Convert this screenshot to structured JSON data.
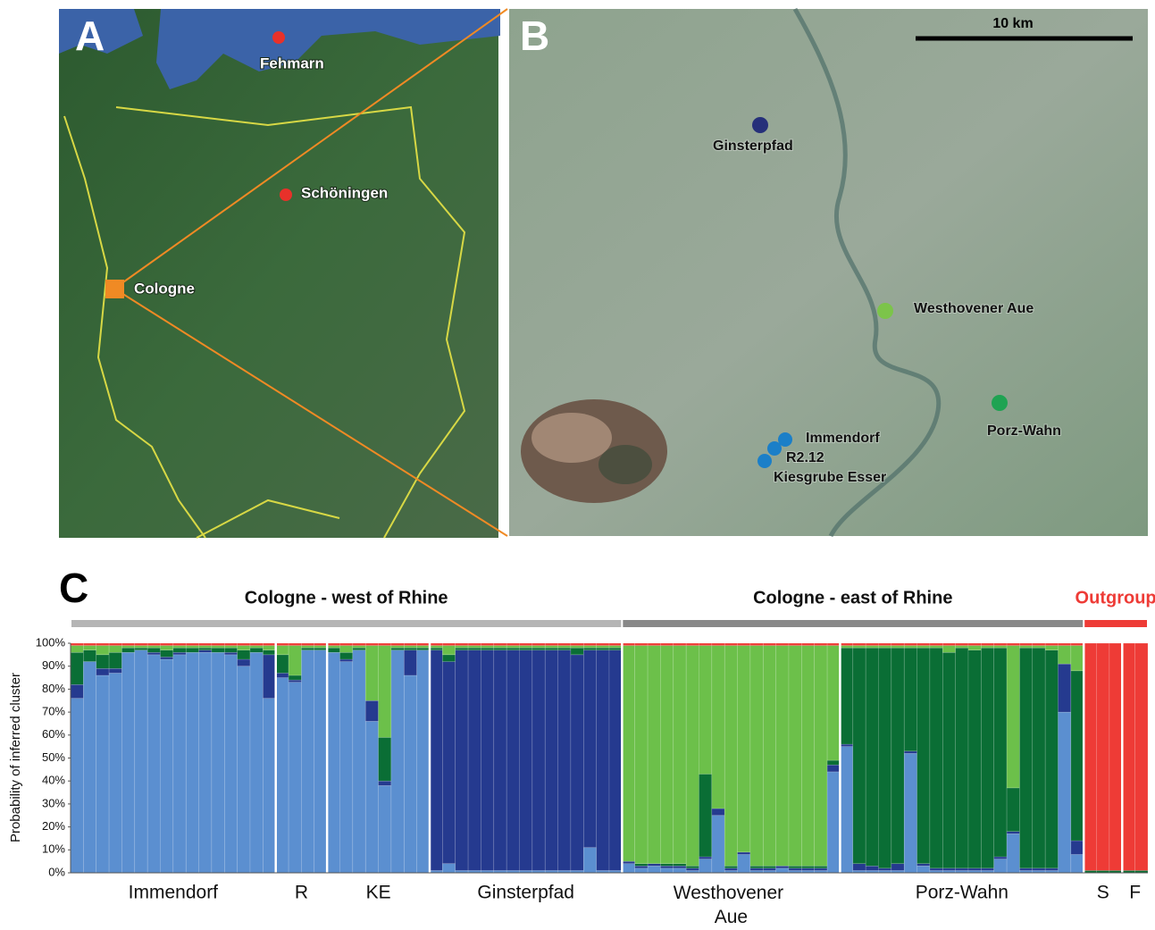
{
  "panel_a": {
    "letter": "A",
    "sites": [
      {
        "label": "Fehmarn",
        "color": "#e8312a"
      },
      {
        "label": "Schöningen",
        "color": "#e8312a"
      },
      {
        "label": "Cologne",
        "color": "#f08a24"
      }
    ]
  },
  "panel_b": {
    "letter": "B",
    "scale_label": "10 km",
    "sites": [
      {
        "label": "Ginsterpfad",
        "color": "#26307a"
      },
      {
        "label": "Westhovener Aue",
        "color": "#7cc44a"
      },
      {
        "label": "Porz-Wahn",
        "color": "#1fa352"
      },
      {
        "label": "Immendorf",
        "color": "#1b7fc8"
      },
      {
        "label": "R2.12",
        "color": "#1b7fc8"
      },
      {
        "label": "Kiesgrube Esser",
        "color": "#1b7fc8"
      }
    ]
  },
  "chart_data": {
    "type": "stacked_bar",
    "panel_letter": "C",
    "ylabel": "Probability of inferred cluster",
    "ylim": [
      0,
      100
    ],
    "yticks": [
      {
        "value": 0,
        "label": "0%"
      },
      {
        "value": 10,
        "label": "10%"
      },
      {
        "value": 20,
        "label": "20%"
      },
      {
        "value": 30,
        "label": "30%"
      },
      {
        "value": 40,
        "label": "40%"
      },
      {
        "value": 50,
        "label": "50%"
      },
      {
        "value": 60,
        "label": "60%"
      },
      {
        "value": 70,
        "label": "70%"
      },
      {
        "value": 80,
        "label": "80%"
      },
      {
        "value": 90,
        "label": "90%"
      },
      {
        "value": 100,
        "label": "100%"
      }
    ],
    "regions": [
      {
        "label": "Cologne - west of Rhine",
        "color": "#b5b5b5",
        "label_color": "#111111",
        "populations": [
          "Immendorf",
          "R",
          "KE",
          "Ginsterpfad"
        ]
      },
      {
        "label": "Cologne - east of Rhine",
        "color": "#888888",
        "label_color": "#111111",
        "populations": [
          "Westhovener Aue",
          "Porz-Wahn"
        ]
      },
      {
        "label": "Outgroup",
        "color": "#ee3b36",
        "label_color": "#ee3b36",
        "populations": [
          "S",
          "F"
        ]
      }
    ],
    "categories": [
      "Immendorf",
      "Immendorf",
      "Immendorf",
      "Immendorf",
      "Immendorf",
      "Immendorf",
      "Immendorf",
      "Immendorf",
      "Immendorf",
      "Immendorf",
      "Immendorf",
      "Immendorf",
      "Immendorf",
      "Immendorf",
      "Immendorf",
      "Immendorf",
      "R",
      "R",
      "R",
      "R",
      "KE",
      "KE",
      "KE",
      "KE",
      "KE",
      "KE",
      "KE",
      "KE",
      "Ginsterpfad",
      "Ginsterpfad",
      "Ginsterpfad",
      "Ginsterpfad",
      "Ginsterpfad",
      "Ginsterpfad",
      "Ginsterpfad",
      "Ginsterpfad",
      "Ginsterpfad",
      "Ginsterpfad",
      "Ginsterpfad",
      "Ginsterpfad",
      "Ginsterpfad",
      "Ginsterpfad",
      "Ginsterpfad",
      "Westhovener Aue",
      "Westhovener Aue",
      "Westhovener Aue",
      "Westhovener Aue",
      "Westhovener Aue",
      "Westhovener Aue",
      "Westhovener Aue",
      "Westhovener Aue",
      "Westhovener Aue",
      "Westhovener Aue",
      "Westhovener Aue",
      "Westhovener Aue",
      "Westhovener Aue",
      "Westhovener Aue",
      "Westhovener Aue",
      "Westhovener Aue",
      "Westhovener Aue",
      "Porz-Wahn",
      "Porz-Wahn",
      "Porz-Wahn",
      "Porz-Wahn",
      "Porz-Wahn",
      "Porz-Wahn",
      "Porz-Wahn",
      "Porz-Wahn",
      "Porz-Wahn",
      "Porz-Wahn",
      "Porz-Wahn",
      "Porz-Wahn",
      "Porz-Wahn",
      "Porz-Wahn",
      "Porz-Wahn",
      "Porz-Wahn",
      "Porz-Wahn",
      "Porz-Wahn",
      "Porz-Wahn",
      "S",
      "S",
      "S",
      "F",
      "F"
    ],
    "series": [
      {
        "color": "#5b8fd0",
        "values": [
          76,
          92,
          86,
          87,
          96,
          97,
          95,
          93,
          95,
          96,
          96,
          96,
          95,
          90,
          96,
          76,
          85,
          83,
          97,
          97,
          96,
          92,
          97,
          66,
          38,
          97,
          86,
          97,
          1,
          4,
          1,
          1,
          1,
          1,
          1,
          1,
          1,
          1,
          1,
          1,
          11,
          1,
          1,
          4,
          2,
          3,
          2,
          2,
          1,
          6,
          25,
          1,
          8,
          1,
          1,
          2,
          1,
          1,
          1,
          44,
          55,
          1,
          1,
          1,
          1,
          52,
          3,
          1,
          1,
          1,
          1,
          1,
          6,
          17,
          1,
          1,
          1,
          70,
          8,
          0,
          0,
          0,
          0,
          0
        ]
      },
      {
        "color": "#253a8f",
        "values": [
          6,
          0,
          3,
          2,
          0,
          0,
          1,
          1,
          1,
          0,
          1,
          0,
          1,
          3,
          0,
          19,
          2,
          1,
          0,
          0,
          0,
          1,
          0,
          9,
          2,
          0,
          11,
          0,
          96,
          88,
          96,
          96,
          96,
          96,
          96,
          96,
          96,
          96,
          96,
          94,
          86,
          96,
          96,
          1,
          1,
          1,
          1,
          1,
          1,
          1,
          3,
          1,
          1,
          1,
          1,
          1,
          1,
          1,
          1,
          3,
          1,
          3,
          2,
          1,
          3,
          1,
          1,
          1,
          1,
          1,
          1,
          1,
          1,
          1,
          1,
          1,
          1,
          21,
          6,
          0,
          0,
          0,
          0,
          0
        ]
      },
      {
        "color": "#0a6e35",
        "values": [
          14,
          5,
          6,
          7,
          2,
          1,
          2,
          3,
          2,
          2,
          1,
          2,
          2,
          4,
          2,
          2,
          8,
          2,
          1,
          1,
          2,
          3,
          1,
          0,
          19,
          1,
          1,
          1,
          1,
          3,
          1,
          1,
          1,
          1,
          1,
          1,
          1,
          1,
          1,
          3,
          1,
          1,
          1,
          0,
          1,
          0,
          1,
          1,
          1,
          36,
          0,
          1,
          0,
          1,
          1,
          0,
          1,
          1,
          1,
          2,
          42,
          94,
          95,
          96,
          94,
          45,
          94,
          96,
          94,
          96,
          95,
          96,
          91,
          19,
          96,
          96,
          95,
          0,
          74,
          1,
          1,
          1,
          1,
          1
        ]
      },
      {
        "color": "#6cc04a",
        "values": [
          3,
          2,
          4,
          3,
          1,
          1,
          1,
          2,
          1,
          1,
          1,
          1,
          1,
          2,
          1,
          2,
          4,
          13,
          1,
          1,
          1,
          3,
          1,
          24,
          40,
          1,
          1,
          1,
          1,
          4,
          1,
          1,
          1,
          1,
          1,
          1,
          1,
          1,
          1,
          1,
          1,
          1,
          1,
          94,
          95,
          95,
          95,
          95,
          96,
          56,
          71,
          96,
          90,
          96,
          96,
          96,
          96,
          96,
          96,
          50,
          1,
          1,
          1,
          1,
          1,
          1,
          1,
          1,
          3,
          1,
          2,
          1,
          1,
          62,
          1,
          1,
          2,
          8,
          11,
          0,
          0,
          0,
          0,
          0
        ]
      },
      {
        "color": "#ee3b36",
        "values": [
          1,
          1,
          1,
          1,
          1,
          1,
          1,
          1,
          1,
          1,
          1,
          1,
          1,
          1,
          1,
          1,
          1,
          1,
          1,
          1,
          1,
          1,
          1,
          1,
          1,
          1,
          1,
          1,
          1,
          1,
          1,
          1,
          1,
          1,
          1,
          1,
          1,
          1,
          1,
          1,
          1,
          1,
          1,
          1,
          1,
          1,
          1,
          1,
          1,
          1,
          1,
          1,
          1,
          1,
          1,
          1,
          1,
          1,
          1,
          1,
          1,
          1,
          1,
          1,
          1,
          1,
          1,
          1,
          1,
          1,
          1,
          1,
          1,
          1,
          1,
          1,
          1,
          1,
          1,
          99,
          99,
          99,
          99,
          99
        ]
      }
    ]
  }
}
